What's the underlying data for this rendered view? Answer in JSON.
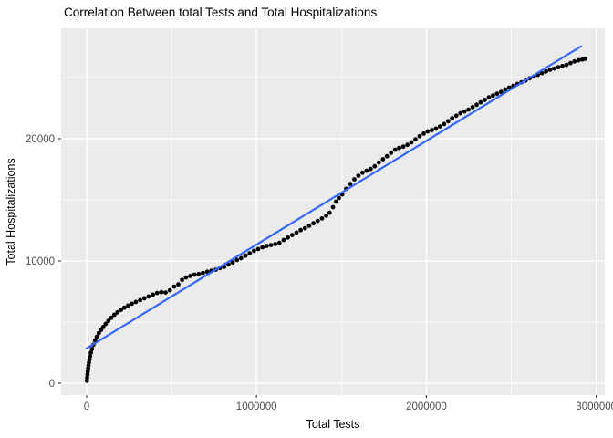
{
  "chart_data": {
    "type": "scatter",
    "title": "Correlation Between total Tests and Total Hospitalizations",
    "xlabel": "Total Tests",
    "ylabel": "Total Hospitalizations",
    "xlim": [
      -150000,
      3050000
    ],
    "ylim": [
      -970,
      29030
    ],
    "x_major_ticks": [
      0,
      1000000,
      2000000,
      3000000
    ],
    "x_tick_labels": [
      "0",
      "1000000",
      "2000000",
      "3000000"
    ],
    "x_minor_ticks": [
      500000,
      1500000,
      2500000
    ],
    "y_major_ticks": [
      0,
      10000,
      20000
    ],
    "y_tick_labels": [
      "0",
      "10000",
      "20000"
    ],
    "y_minor_ticks": [
      5000,
      15000,
      25000
    ],
    "grid": true,
    "legend": "none",
    "colors": {
      "panel_bg": "#EBEBEB",
      "grid_major": "#FFFFFF",
      "grid_minor": "#FFFFFF",
      "point": "#000000",
      "trend_line": "#3366FF",
      "tick_label": "#4D4D4D",
      "tick_mark": "#333333"
    },
    "trend_line": {
      "x1": 0,
      "y1": 2850,
      "x2": 2910000,
      "y2": 27550
    },
    "points": [
      [
        2000,
        200
      ],
      [
        3000,
        450
      ],
      [
        5000,
        700
      ],
      [
        7000,
        950
      ],
      [
        9000,
        1200
      ],
      [
        11000,
        1450
      ],
      [
        14000,
        1700
      ],
      [
        17000,
        1950
      ],
      [
        20000,
        2200
      ],
      [
        25000,
        2500
      ],
      [
        32000,
        2800
      ],
      [
        40000,
        3150
      ],
      [
        50000,
        3500
      ],
      [
        60000,
        3800
      ],
      [
        72000,
        4100
      ],
      [
        85000,
        4350
      ],
      [
        98000,
        4600
      ],
      [
        112000,
        4850
      ],
      [
        128000,
        5100
      ],
      [
        145000,
        5350
      ],
      [
        163000,
        5600
      ],
      [
        182000,
        5800
      ],
      [
        202000,
        6000
      ],
      [
        222000,
        6180
      ],
      [
        244000,
        6350
      ],
      [
        266000,
        6500
      ],
      [
        290000,
        6650
      ],
      [
        315000,
        6800
      ],
      [
        340000,
        6950
      ],
      [
        365000,
        7100
      ],
      [
        390000,
        7250
      ],
      [
        415000,
        7380
      ],
      [
        440000,
        7450
      ],
      [
        465000,
        7420
      ],
      [
        490000,
        7600
      ],
      [
        515000,
        7900
      ],
      [
        540000,
        8080
      ],
      [
        562000,
        8450
      ],
      [
        585000,
        8650
      ],
      [
        610000,
        8780
      ],
      [
        635000,
        8870
      ],
      [
        660000,
        8930
      ],
      [
        685000,
        9020
      ],
      [
        710000,
        9120
      ],
      [
        735000,
        9200
      ],
      [
        760000,
        9280
      ],
      [
        785000,
        9420
      ],
      [
        810000,
        9520
      ],
      [
        835000,
        9720
      ],
      [
        860000,
        9880
      ],
      [
        885000,
        10080
      ],
      [
        910000,
        10230
      ],
      [
        935000,
        10430
      ],
      [
        960000,
        10630
      ],
      [
        985000,
        10830
      ],
      [
        1010000,
        10980
      ],
      [
        1035000,
        11120
      ],
      [
        1060000,
        11230
      ],
      [
        1085000,
        11300
      ],
      [
        1110000,
        11380
      ],
      [
        1135000,
        11480
      ],
      [
        1160000,
        11720
      ],
      [
        1185000,
        11920
      ],
      [
        1210000,
        12120
      ],
      [
        1235000,
        12320
      ],
      [
        1260000,
        12520
      ],
      [
        1285000,
        12680
      ],
      [
        1310000,
        12880
      ],
      [
        1335000,
        13080
      ],
      [
        1360000,
        13280
      ],
      [
        1385000,
        13480
      ],
      [
        1410000,
        13700
      ],
      [
        1430000,
        13950
      ],
      [
        1450000,
        14400
      ],
      [
        1468000,
        14850
      ],
      [
        1485000,
        15150
      ],
      [
        1505000,
        15450
      ],
      [
        1528000,
        15900
      ],
      [
        1552000,
        16300
      ],
      [
        1576000,
        16680
      ],
      [
        1600000,
        16980
      ],
      [
        1624000,
        17220
      ],
      [
        1648000,
        17380
      ],
      [
        1672000,
        17520
      ],
      [
        1696000,
        17750
      ],
      [
        1720000,
        18050
      ],
      [
        1744000,
        18320
      ],
      [
        1768000,
        18570
      ],
      [
        1792000,
        18850
      ],
      [
        1816000,
        19100
      ],
      [
        1840000,
        19250
      ],
      [
        1864000,
        19350
      ],
      [
        1888000,
        19500
      ],
      [
        1912000,
        19700
      ],
      [
        1936000,
        19950
      ],
      [
        1960000,
        20200
      ],
      [
        1984000,
        20420
      ],
      [
        2008000,
        20600
      ],
      [
        2032000,
        20700
      ],
      [
        2056000,
        20820
      ],
      [
        2080000,
        21000
      ],
      [
        2104000,
        21200
      ],
      [
        2128000,
        21430
      ],
      [
        2152000,
        21680
      ],
      [
        2176000,
        21880
      ],
      [
        2200000,
        22080
      ],
      [
        2224000,
        22230
      ],
      [
        2248000,
        22380
      ],
      [
        2272000,
        22580
      ],
      [
        2296000,
        22780
      ],
      [
        2320000,
        22980
      ],
      [
        2344000,
        23180
      ],
      [
        2368000,
        23380
      ],
      [
        2392000,
        23530
      ],
      [
        2416000,
        23680
      ],
      [
        2440000,
        23830
      ],
      [
        2464000,
        24030
      ],
      [
        2488000,
        24180
      ],
      [
        2512000,
        24330
      ],
      [
        2536000,
        24480
      ],
      [
        2560000,
        24620
      ],
      [
        2584000,
        24760
      ],
      [
        2608000,
        24940
      ],
      [
        2632000,
        25080
      ],
      [
        2656000,
        25220
      ],
      [
        2680000,
        25360
      ],
      [
        2704000,
        25500
      ],
      [
        2728000,
        25640
      ],
      [
        2752000,
        25740
      ],
      [
        2776000,
        25840
      ],
      [
        2800000,
        25940
      ],
      [
        2824000,
        26040
      ],
      [
        2848000,
        26180
      ],
      [
        2872000,
        26320
      ],
      [
        2896000,
        26420
      ],
      [
        2918000,
        26480
      ],
      [
        2935000,
        26530
      ]
    ]
  }
}
